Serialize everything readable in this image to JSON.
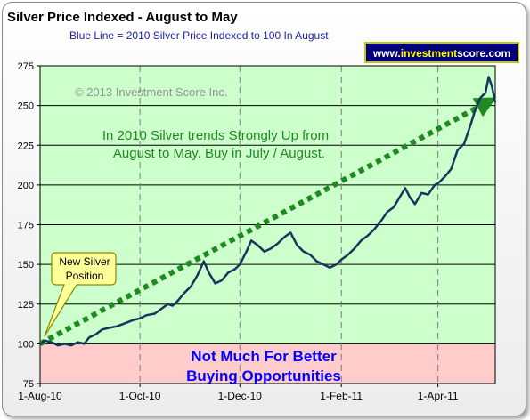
{
  "chart_data": {
    "type": "line",
    "title": "Silver Price Indexed - August to May",
    "subtitle": "Blue Line =  2010 Silver Price Indexed to 100 In August",
    "watermark": "© 2013 Investment Score Inc.",
    "site_banner": {
      "prefix": "www.",
      "brand_a": "investment",
      "brand_b": "score",
      "suffix": ".com"
    },
    "x_tick_labels": [
      "1-Aug-10",
      "1-Oct-10",
      "1-Dec-10",
      "1-Feb-11",
      "1-Apr-11"
    ],
    "x_tick_dates": [
      "2010-08-01",
      "2010-10-01",
      "2010-12-01",
      "2011-02-01",
      "2011-04-01"
    ],
    "xlim": [
      "2010-08-01",
      "2011-05-06"
    ],
    "ylim": [
      75,
      275
    ],
    "y_ticks": [
      75,
      100,
      125,
      150,
      175,
      200,
      225,
      250,
      275
    ],
    "grid": "horizontal",
    "colors": {
      "line": "#17365d",
      "trend": "#1f8a1f",
      "upper_band": "#ccffcc",
      "lower_band": "#ffcccc",
      "annotation_text_green": "#1f8a1f",
      "annotation_text_blue": "#0000ff",
      "subtitle": "#1f1fa0",
      "callout_fill": "#ffff99",
      "banner_bg": "#00007a"
    },
    "bands": [
      {
        "from": 100,
        "to": 275,
        "color": "#ccffcc"
      },
      {
        "from": 75,
        "to": 100,
        "color": "#ffcccc"
      }
    ],
    "trend_arrow": {
      "from": [
        "2010-08-01",
        100
      ],
      "to": [
        "2011-05-01",
        252
      ]
    },
    "annotations": {
      "upper_text_line1": "In 2010 Silver trends Strongly Up from",
      "upper_text_line2": "August to May.  Buy in July / August.",
      "lower_text_line1": "Not Much For Better",
      "lower_text_line2": "Buying Opportunities",
      "callout_line1": "New Silver",
      "callout_line2": "Position"
    },
    "series": [
      {
        "values": [
          [
            "2010-08-01",
            100
          ],
          [
            "2010-08-04",
            102
          ],
          [
            "2010-08-08",
            101
          ],
          [
            "2010-08-12",
            99
          ],
          [
            "2010-08-16",
            100
          ],
          [
            "2010-08-20",
            99
          ],
          [
            "2010-08-24",
            101
          ],
          [
            "2010-08-28",
            100
          ],
          [
            "2010-08-31",
            104
          ],
          [
            "2010-09-04",
            106
          ],
          [
            "2010-09-08",
            109
          ],
          [
            "2010-09-12",
            110
          ],
          [
            "2010-09-17",
            111
          ],
          [
            "2010-09-22",
            113
          ],
          [
            "2010-09-27",
            115
          ],
          [
            "2010-10-01",
            116
          ],
          [
            "2010-10-05",
            118
          ],
          [
            "2010-10-10",
            119
          ],
          [
            "2010-10-14",
            122
          ],
          [
            "2010-10-18",
            125
          ],
          [
            "2010-10-21",
            124
          ],
          [
            "2010-10-24",
            127
          ],
          [
            "2010-10-28",
            132
          ],
          [
            "2010-11-01",
            136
          ],
          [
            "2010-11-05",
            143
          ],
          [
            "2010-11-09",
            152
          ],
          [
            "2010-11-12",
            145
          ],
          [
            "2010-11-16",
            138
          ],
          [
            "2010-11-20",
            140
          ],
          [
            "2010-11-24",
            145
          ],
          [
            "2010-11-28",
            147
          ],
          [
            "2010-12-01",
            150
          ],
          [
            "2010-12-05",
            158
          ],
          [
            "2010-12-08",
            165
          ],
          [
            "2010-12-12",
            162
          ],
          [
            "2010-12-16",
            158
          ],
          [
            "2010-12-20",
            160
          ],
          [
            "2010-12-24",
            163
          ],
          [
            "2010-12-28",
            167
          ],
          [
            "2011-01-01",
            170
          ],
          [
            "2011-01-05",
            162
          ],
          [
            "2011-01-09",
            158
          ],
          [
            "2011-01-13",
            156
          ],
          [
            "2011-01-17",
            152
          ],
          [
            "2011-01-21",
            150
          ],
          [
            "2011-01-25",
            148
          ],
          [
            "2011-01-29",
            150
          ],
          [
            "2011-02-01",
            153
          ],
          [
            "2011-02-05",
            156
          ],
          [
            "2011-02-09",
            160
          ],
          [
            "2011-02-13",
            165
          ],
          [
            "2011-02-17",
            168
          ],
          [
            "2011-02-21",
            172
          ],
          [
            "2011-02-25",
            177
          ],
          [
            "2011-03-01",
            183
          ],
          [
            "2011-03-05",
            186
          ],
          [
            "2011-03-09",
            193
          ],
          [
            "2011-03-12",
            198
          ],
          [
            "2011-03-15",
            192
          ],
          [
            "2011-03-18",
            188
          ],
          [
            "2011-03-22",
            195
          ],
          [
            "2011-03-26",
            194
          ],
          [
            "2011-03-30",
            200
          ],
          [
            "2011-04-01",
            201
          ],
          [
            "2011-04-05",
            205
          ],
          [
            "2011-04-09",
            210
          ],
          [
            "2011-04-13",
            222
          ],
          [
            "2011-04-17",
            226
          ],
          [
            "2011-04-21",
            238
          ],
          [
            "2011-04-24",
            248
          ],
          [
            "2011-04-27",
            255
          ],
          [
            "2011-04-30",
            258
          ],
          [
            "2011-05-02",
            268
          ],
          [
            "2011-05-04",
            262
          ],
          [
            "2011-05-06",
            252
          ]
        ]
      }
    ]
  }
}
